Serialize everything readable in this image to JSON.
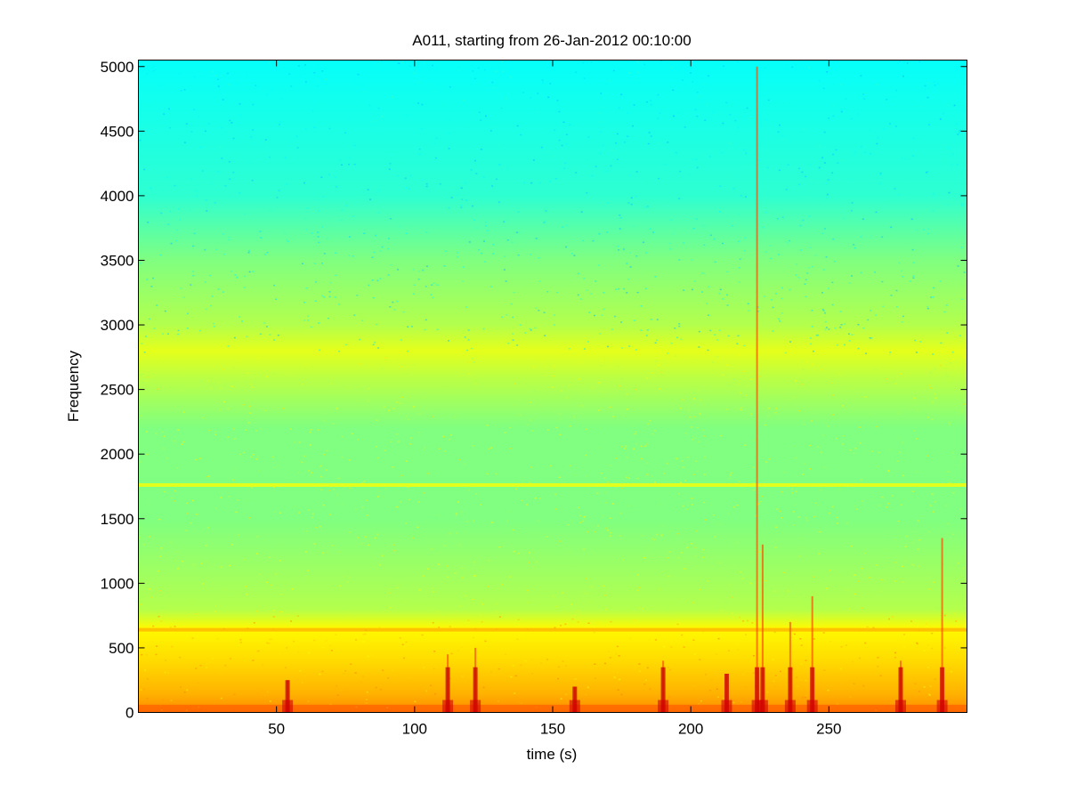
{
  "chart_data": {
    "type": "heatmap",
    "title": "A011, starting from 26-Jan-2012 00:10:00",
    "xlabel": "time (s)",
    "ylabel": "Frequency",
    "xlim": [
      0,
      300
    ],
    "ylim": [
      0,
      5050
    ],
    "xticks": [
      50,
      100,
      150,
      200,
      250
    ],
    "yticks": [
      0,
      500,
      1000,
      1500,
      2000,
      2500,
      3000,
      3500,
      4000,
      4500,
      5000
    ],
    "colormap": "jet",
    "grid": false,
    "background_levels": [
      {
        "freq": 0,
        "level": 0.74
      },
      {
        "freq": 150,
        "level": 0.7
      },
      {
        "freq": 400,
        "level": 0.66
      },
      {
        "freq": 650,
        "level": 0.63
      },
      {
        "freq": 800,
        "level": 0.55
      },
      {
        "freq": 1500,
        "level": 0.5
      },
      {
        "freq": 2200,
        "level": 0.5
      },
      {
        "freq": 2600,
        "level": 0.56
      },
      {
        "freq": 2800,
        "level": 0.6
      },
      {
        "freq": 3000,
        "level": 0.55
      },
      {
        "freq": 3500,
        "level": 0.5
      },
      {
        "freq": 4000,
        "level": 0.42
      },
      {
        "freq": 5050,
        "level": 0.38
      }
    ],
    "horizontal_bands": [
      {
        "freq": 1760,
        "level": 0.62
      },
      {
        "freq": 640,
        "level": 0.7
      }
    ],
    "vertical_events": [
      {
        "time": 54,
        "max_freq": 250
      },
      {
        "time": 112,
        "max_freq": 450
      },
      {
        "time": 122,
        "max_freq": 500
      },
      {
        "time": 158,
        "max_freq": 200
      },
      {
        "time": 190,
        "max_freq": 400
      },
      {
        "time": 213,
        "max_freq": 300
      },
      {
        "time": 224,
        "max_freq": 5000
      },
      {
        "time": 226,
        "max_freq": 1300
      },
      {
        "time": 236,
        "max_freq": 700
      },
      {
        "time": 244,
        "max_freq": 900
      },
      {
        "time": 276,
        "max_freq": 400
      },
      {
        "time": 291,
        "max_freq": 1350
      }
    ]
  }
}
